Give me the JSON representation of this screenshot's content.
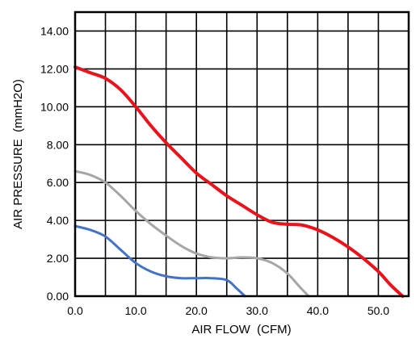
{
  "chart_data": {
    "type": "line",
    "title": "",
    "xlabel": "AIR FLOW  (CFM)",
    "ylabel": "AIR PRESSURE  (mmH2O)",
    "xlim": [
      0,
      55
    ],
    "ylim": [
      0,
      15
    ],
    "grid": true,
    "legend": "none",
    "x_ticks": [
      "0.0",
      "10.0",
      "20.0",
      "30.0",
      "40.0",
      "50.0"
    ],
    "x_tick_values": [
      0,
      10,
      20,
      30,
      40,
      50
    ],
    "y_ticks": [
      "0.00",
      "2.00",
      "4.00",
      "6.00",
      "8.00",
      "10.00",
      "12.00",
      "14.00"
    ],
    "y_tick_values": [
      0,
      2,
      4,
      6,
      8,
      10,
      12,
      14
    ],
    "series": [
      {
        "color": "#e8141b",
        "points": [
          [
            0,
            12.1
          ],
          [
            2.5,
            11.8
          ],
          [
            5,
            11.5
          ],
          [
            7.5,
            10.9
          ],
          [
            10,
            10.0
          ],
          [
            12.5,
            9.0
          ],
          [
            15,
            8.1
          ],
          [
            17.5,
            7.3
          ],
          [
            20,
            6.5
          ],
          [
            22.5,
            5.9
          ],
          [
            25,
            5.3
          ],
          [
            27.5,
            4.8
          ],
          [
            30,
            4.3
          ],
          [
            32.5,
            3.9
          ],
          [
            35,
            3.8
          ],
          [
            37.5,
            3.75
          ],
          [
            40,
            3.5
          ],
          [
            42.5,
            3.1
          ],
          [
            45,
            2.6
          ],
          [
            47.5,
            2.0
          ],
          [
            50,
            1.3
          ],
          [
            52,
            0.6
          ],
          [
            54,
            0.0
          ]
        ]
      },
      {
        "color": "#a6a6a6",
        "points": [
          [
            0,
            6.6
          ],
          [
            2.5,
            6.4
          ],
          [
            5,
            6.0
          ],
          [
            7.5,
            5.3
          ],
          [
            10,
            4.5
          ],
          [
            12.5,
            3.8
          ],
          [
            15,
            3.2
          ],
          [
            17.5,
            2.65
          ],
          [
            20,
            2.25
          ],
          [
            22.5,
            2.05
          ],
          [
            25,
            2.0
          ],
          [
            27.5,
            2.05
          ],
          [
            30,
            2.0
          ],
          [
            32.5,
            1.75
          ],
          [
            35,
            1.2
          ],
          [
            37,
            0.5
          ],
          [
            38.5,
            0.0
          ]
        ]
      },
      {
        "color": "#4472c4",
        "points": [
          [
            0,
            3.7
          ],
          [
            2.5,
            3.5
          ],
          [
            5,
            3.15
          ],
          [
            7.5,
            2.45
          ],
          [
            10,
            1.75
          ],
          [
            12.5,
            1.3
          ],
          [
            15,
            1.05
          ],
          [
            17.5,
            0.95
          ],
          [
            20,
            0.95
          ],
          [
            22.5,
            0.95
          ],
          [
            25,
            0.85
          ],
          [
            26.5,
            0.45
          ],
          [
            28,
            0.0
          ]
        ]
      }
    ]
  }
}
